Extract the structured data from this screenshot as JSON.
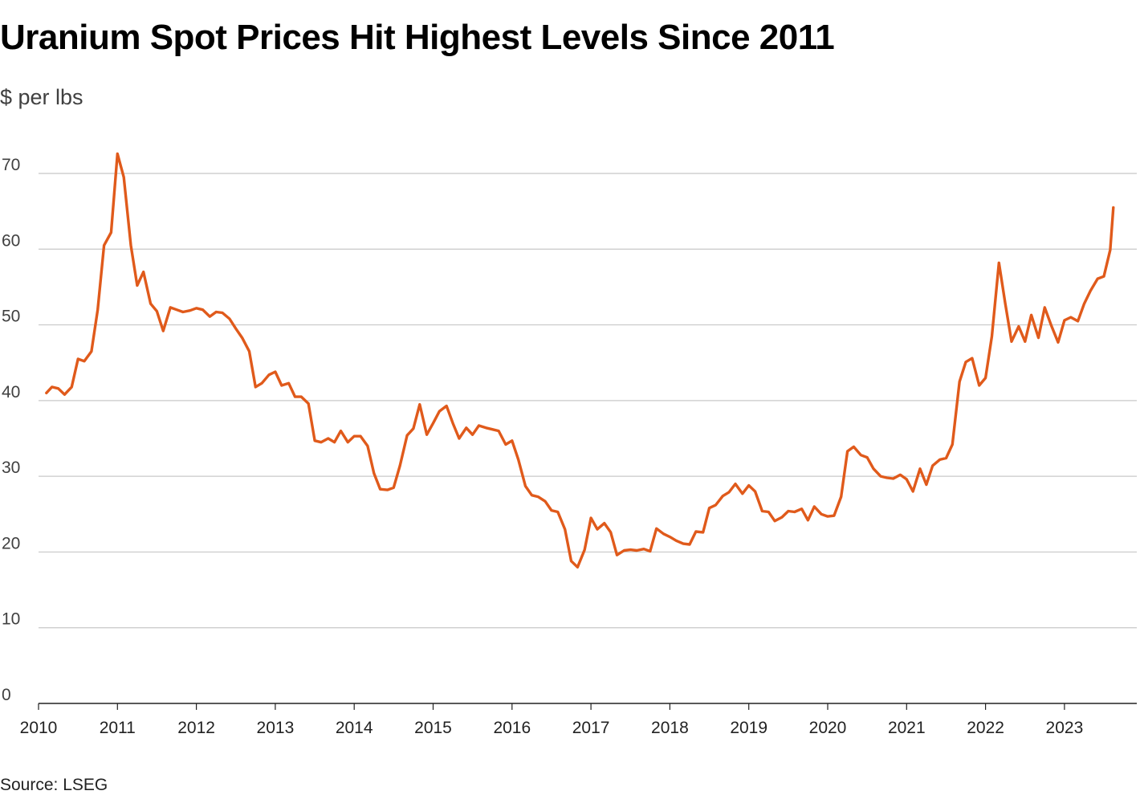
{
  "chart_data": {
    "type": "line",
    "title": "Uranium Spot Prices Hit Highest Levels Since 2011",
    "subtitle": "$ per lbs",
    "ylabel": "$ per lbs",
    "xlabel": "",
    "source": "Source: LSEG",
    "ylim": [
      0,
      70
    ],
    "y_ticks": [
      0,
      10,
      20,
      30,
      40,
      50,
      60,
      70
    ],
    "x_range": [
      2010,
      2023.83
    ],
    "x_ticks": [
      2010,
      2011,
      2012,
      2013,
      2014,
      2015,
      2016,
      2017,
      2018,
      2019,
      2020,
      2021,
      2022,
      2023
    ],
    "line_color": "#e05a1b",
    "grid_color": "#c8c8c8",
    "series": [
      {
        "name": "Uranium spot price",
        "points": [
          [
            2010.1,
            41.0
          ],
          [
            2010.17,
            41.8
          ],
          [
            2010.25,
            41.6
          ],
          [
            2010.33,
            40.8
          ],
          [
            2010.42,
            41.8
          ],
          [
            2010.5,
            45.5
          ],
          [
            2010.58,
            45.2
          ],
          [
            2010.67,
            46.5
          ],
          [
            2010.75,
            52.0
          ],
          [
            2010.83,
            60.5
          ],
          [
            2010.92,
            62.2
          ],
          [
            2011.0,
            72.6
          ],
          [
            2011.08,
            69.5
          ],
          [
            2011.17,
            60.5
          ],
          [
            2011.25,
            55.2
          ],
          [
            2011.33,
            57.0
          ],
          [
            2011.42,
            52.8
          ],
          [
            2011.5,
            51.8
          ],
          [
            2011.58,
            49.2
          ],
          [
            2011.67,
            52.3
          ],
          [
            2011.75,
            52.0
          ],
          [
            2011.83,
            51.7
          ],
          [
            2011.92,
            51.9
          ],
          [
            2012.0,
            52.2
          ],
          [
            2012.08,
            52.0
          ],
          [
            2012.17,
            51.1
          ],
          [
            2012.25,
            51.7
          ],
          [
            2012.33,
            51.6
          ],
          [
            2012.42,
            50.8
          ],
          [
            2012.5,
            49.5
          ],
          [
            2012.58,
            48.3
          ],
          [
            2012.67,
            46.5
          ],
          [
            2012.75,
            41.8
          ],
          [
            2012.83,
            42.3
          ],
          [
            2012.92,
            43.4
          ],
          [
            2013.0,
            43.8
          ],
          [
            2013.08,
            42.0
          ],
          [
            2013.17,
            42.3
          ],
          [
            2013.25,
            40.5
          ],
          [
            2013.33,
            40.5
          ],
          [
            2013.42,
            39.6
          ],
          [
            2013.5,
            34.7
          ],
          [
            2013.58,
            34.5
          ],
          [
            2013.67,
            35.0
          ],
          [
            2013.75,
            34.5
          ],
          [
            2013.83,
            36.0
          ],
          [
            2013.92,
            34.5
          ],
          [
            2014.0,
            35.3
          ],
          [
            2014.08,
            35.3
          ],
          [
            2014.17,
            34.0
          ],
          [
            2014.25,
            30.4
          ],
          [
            2014.33,
            28.3
          ],
          [
            2014.42,
            28.2
          ],
          [
            2014.5,
            28.5
          ],
          [
            2014.58,
            31.4
          ],
          [
            2014.67,
            35.4
          ],
          [
            2014.75,
            36.3
          ],
          [
            2014.83,
            39.5
          ],
          [
            2014.92,
            35.5
          ],
          [
            2015.0,
            37.0
          ],
          [
            2015.08,
            38.6
          ],
          [
            2015.17,
            39.3
          ],
          [
            2015.25,
            37.0
          ],
          [
            2015.33,
            35.0
          ],
          [
            2015.42,
            36.4
          ],
          [
            2015.5,
            35.5
          ],
          [
            2015.58,
            36.7
          ],
          [
            2015.67,
            36.4
          ],
          [
            2015.75,
            36.2
          ],
          [
            2015.83,
            36.0
          ],
          [
            2015.92,
            34.2
          ],
          [
            2016.0,
            34.7
          ],
          [
            2016.08,
            32.2
          ],
          [
            2016.17,
            28.7
          ],
          [
            2016.25,
            27.5
          ],
          [
            2016.33,
            27.3
          ],
          [
            2016.42,
            26.7
          ],
          [
            2016.5,
            25.5
          ],
          [
            2016.58,
            25.3
          ],
          [
            2016.67,
            23.0
          ],
          [
            2016.75,
            18.8
          ],
          [
            2016.83,
            18.0
          ],
          [
            2016.92,
            20.3
          ],
          [
            2017.0,
            24.5
          ],
          [
            2017.08,
            23.0
          ],
          [
            2017.17,
            23.8
          ],
          [
            2017.25,
            22.6
          ],
          [
            2017.33,
            19.6
          ],
          [
            2017.42,
            20.2
          ],
          [
            2017.5,
            20.3
          ],
          [
            2017.58,
            20.2
          ],
          [
            2017.67,
            20.4
          ],
          [
            2017.75,
            20.1
          ],
          [
            2017.83,
            23.1
          ],
          [
            2017.92,
            22.4
          ],
          [
            2018.0,
            22.0
          ],
          [
            2018.08,
            21.5
          ],
          [
            2018.17,
            21.1
          ],
          [
            2018.25,
            21.0
          ],
          [
            2018.33,
            22.7
          ],
          [
            2018.42,
            22.6
          ],
          [
            2018.5,
            25.8
          ],
          [
            2018.58,
            26.2
          ],
          [
            2018.67,
            27.4
          ],
          [
            2018.75,
            27.9
          ],
          [
            2018.83,
            29.0
          ],
          [
            2018.92,
            27.7
          ],
          [
            2019.0,
            28.8
          ],
          [
            2019.08,
            28.0
          ],
          [
            2019.17,
            25.4
          ],
          [
            2019.25,
            25.3
          ],
          [
            2019.33,
            24.1
          ],
          [
            2019.42,
            24.6
          ],
          [
            2019.5,
            25.4
          ],
          [
            2019.58,
            25.3
          ],
          [
            2019.67,
            25.7
          ],
          [
            2019.75,
            24.2
          ],
          [
            2019.83,
            26.0
          ],
          [
            2019.92,
            25.0
          ],
          [
            2020.0,
            24.7
          ],
          [
            2020.08,
            24.8
          ],
          [
            2020.17,
            27.3
          ],
          [
            2020.25,
            33.3
          ],
          [
            2020.33,
            33.9
          ],
          [
            2020.42,
            32.8
          ],
          [
            2020.5,
            32.5
          ],
          [
            2020.58,
            31.0
          ],
          [
            2020.67,
            30.0
          ],
          [
            2020.75,
            29.8
          ],
          [
            2020.83,
            29.7
          ],
          [
            2020.92,
            30.2
          ],
          [
            2021.0,
            29.6
          ],
          [
            2021.08,
            28.0
          ],
          [
            2021.17,
            31.0
          ],
          [
            2021.25,
            28.9
          ],
          [
            2021.33,
            31.4
          ],
          [
            2021.42,
            32.2
          ],
          [
            2021.5,
            32.4
          ],
          [
            2021.58,
            34.2
          ],
          [
            2021.67,
            42.5
          ],
          [
            2021.75,
            45.1
          ],
          [
            2021.83,
            45.6
          ],
          [
            2021.92,
            42.0
          ],
          [
            2022.0,
            43.0
          ],
          [
            2022.08,
            48.5
          ],
          [
            2022.17,
            58.2
          ],
          [
            2022.25,
            52.8
          ],
          [
            2022.33,
            47.8
          ],
          [
            2022.42,
            49.8
          ],
          [
            2022.5,
            47.8
          ],
          [
            2022.58,
            51.3
          ],
          [
            2022.67,
            48.3
          ],
          [
            2022.75,
            52.3
          ],
          [
            2022.83,
            50.0
          ],
          [
            2022.92,
            47.7
          ],
          [
            2023.0,
            50.6
          ],
          [
            2023.08,
            51.0
          ],
          [
            2023.17,
            50.5
          ],
          [
            2023.25,
            52.8
          ],
          [
            2023.33,
            54.5
          ],
          [
            2023.42,
            56.1
          ],
          [
            2023.5,
            56.4
          ],
          [
            2023.58,
            59.9
          ],
          [
            2023.62,
            65.5
          ]
        ]
      }
    ]
  }
}
